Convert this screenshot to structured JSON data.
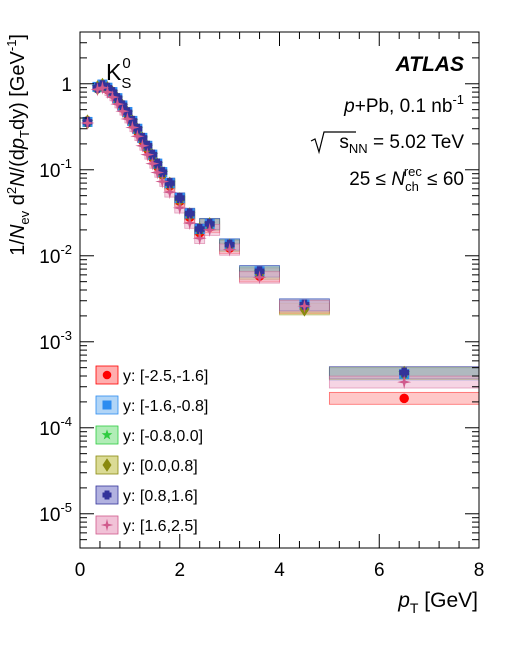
{
  "chart_data": {
    "type": "scatter",
    "experiment": "ATLAS",
    "particle": {
      "base": "K",
      "sub": "S",
      "sup": "0"
    },
    "annotations": {
      "collision": {
        "p": "p",
        "rest": "+Pb, 0.1 nb",
        "sup": "-1"
      },
      "energy": {
        "root": "s",
        "sub": "NN",
        "rest": " = 5.02 TeV"
      },
      "multiplicity": {
        "pre": "25 ≤ ",
        "N": "N",
        "sub": "ch",
        "sup": "rec",
        "post": " ≤ 60"
      }
    },
    "xlabel": {
      "p": "p",
      "sub": "T",
      "unit": " [GeV]"
    },
    "ylabel": "1/N_ev d²N/(dp_T dy) [GeV⁻¹]",
    "xlim": [
      0,
      8
    ],
    "ylim": [
      4e-06,
      4
    ],
    "yscale": "log",
    "x_ticks": [
      "0",
      "2",
      "4",
      "6",
      "8"
    ],
    "y_ticks": [
      {
        "v": 1,
        "label": "1"
      },
      {
        "v": 0.1,
        "mant": "10",
        "exp": "-1"
      },
      {
        "v": 0.01,
        "mant": "10",
        "exp": "-2"
      },
      {
        "v": 0.001,
        "mant": "10",
        "exp": "-3"
      },
      {
        "v": 0.0001,
        "mant": "10",
        "exp": "-4"
      },
      {
        "v": 1e-05,
        "mant": "10",
        "exp": "-5"
      }
    ],
    "legend_placement": "lower-left",
    "x": [
      0.15,
      0.35,
      0.45,
      0.55,
      0.65,
      0.75,
      0.85,
      0.95,
      1.05,
      1.15,
      1.25,
      1.35,
      1.45,
      1.55,
      1.65,
      1.8,
      2.0,
      2.2,
      2.4,
      2.6,
      3.0,
      3.6,
      4.5,
      6.5
    ],
    "x_err": [
      0.05,
      0.05,
      0.05,
      0.05,
      0.05,
      0.05,
      0.05,
      0.05,
      0.05,
      0.05,
      0.05,
      0.05,
      0.05,
      0.05,
      0.05,
      0.1,
      0.1,
      0.1,
      0.1,
      0.2,
      0.2,
      0.4,
      0.5,
      1.5
    ],
    "series": [
      {
        "name": "y: [-2.5,-1.6]",
        "marker": "circle",
        "color": "#ff0000",
        "band": "#ff9a9a",
        "values": [
          0.37,
          0.9,
          0.92,
          0.86,
          0.76,
          0.64,
          0.53,
          0.44,
          0.35,
          0.28,
          0.22,
          0.175,
          0.14,
          0.11,
          0.088,
          0.065,
          0.043,
          0.028,
          0.0185,
          0.0215,
          0.0123,
          0.0058,
          0.0025,
          0.00022
        ]
      },
      {
        "name": "y: [-1.6,-0.8]",
        "marker": "square",
        "color": "#2d8cf0",
        "band": "#9ecbf5",
        "values": [
          0.36,
          0.92,
          0.98,
          0.9,
          0.8,
          0.68,
          0.56,
          0.47,
          0.37,
          0.3,
          0.235,
          0.19,
          0.15,
          0.118,
          0.094,
          0.07,
          0.047,
          0.031,
          0.0205,
          0.0235,
          0.0136,
          0.0066,
          0.0027,
          0.00042
        ]
      },
      {
        "name": "y: [-0.8,0.0]",
        "marker": "star",
        "color": "#2ecc40",
        "band": "#9de8a5",
        "values": [
          0.36,
          0.91,
          0.97,
          0.89,
          0.79,
          0.67,
          0.55,
          0.46,
          0.365,
          0.295,
          0.23,
          0.185,
          0.147,
          0.116,
          0.092,
          0.069,
          0.046,
          0.0305,
          0.0202,
          0.0232,
          0.0133,
          0.0064,
          0.0026,
          0.00043
        ]
      },
      {
        "name": "y: [0.0,0.8]",
        "marker": "diamond",
        "color": "#8a8a10",
        "band": "#d2d27a",
        "values": [
          0.36,
          0.9,
          0.96,
          0.88,
          0.78,
          0.66,
          0.55,
          0.455,
          0.36,
          0.29,
          0.228,
          0.182,
          0.145,
          0.114,
          0.09,
          0.068,
          0.045,
          0.03,
          0.02,
          0.023,
          0.013,
          0.0062,
          0.0024,
          0.00043
        ]
      },
      {
        "name": "y: [0.8,1.6]",
        "marker": "cross",
        "color": "#33339a",
        "band": "#9f9fd8",
        "values": [
          0.36,
          0.9,
          0.96,
          0.9,
          0.8,
          0.68,
          0.56,
          0.465,
          0.37,
          0.3,
          0.235,
          0.19,
          0.15,
          0.118,
          0.094,
          0.07,
          0.047,
          0.031,
          0.0205,
          0.0235,
          0.0135,
          0.0066,
          0.0027,
          0.00044
        ]
      },
      {
        "name": "y: [1.6,2.5]",
        "marker": "star4",
        "color": "#d05a8c",
        "band": "#eeb3cd",
        "values": [
          0.35,
          0.86,
          0.9,
          0.8,
          0.7,
          0.58,
          0.48,
          0.39,
          0.31,
          0.245,
          0.19,
          0.15,
          0.118,
          0.093,
          0.073,
          0.055,
          0.036,
          0.024,
          0.016,
          0.02,
          0.0118,
          0.0056,
          0.0026,
          0.00034
        ]
      }
    ]
  }
}
